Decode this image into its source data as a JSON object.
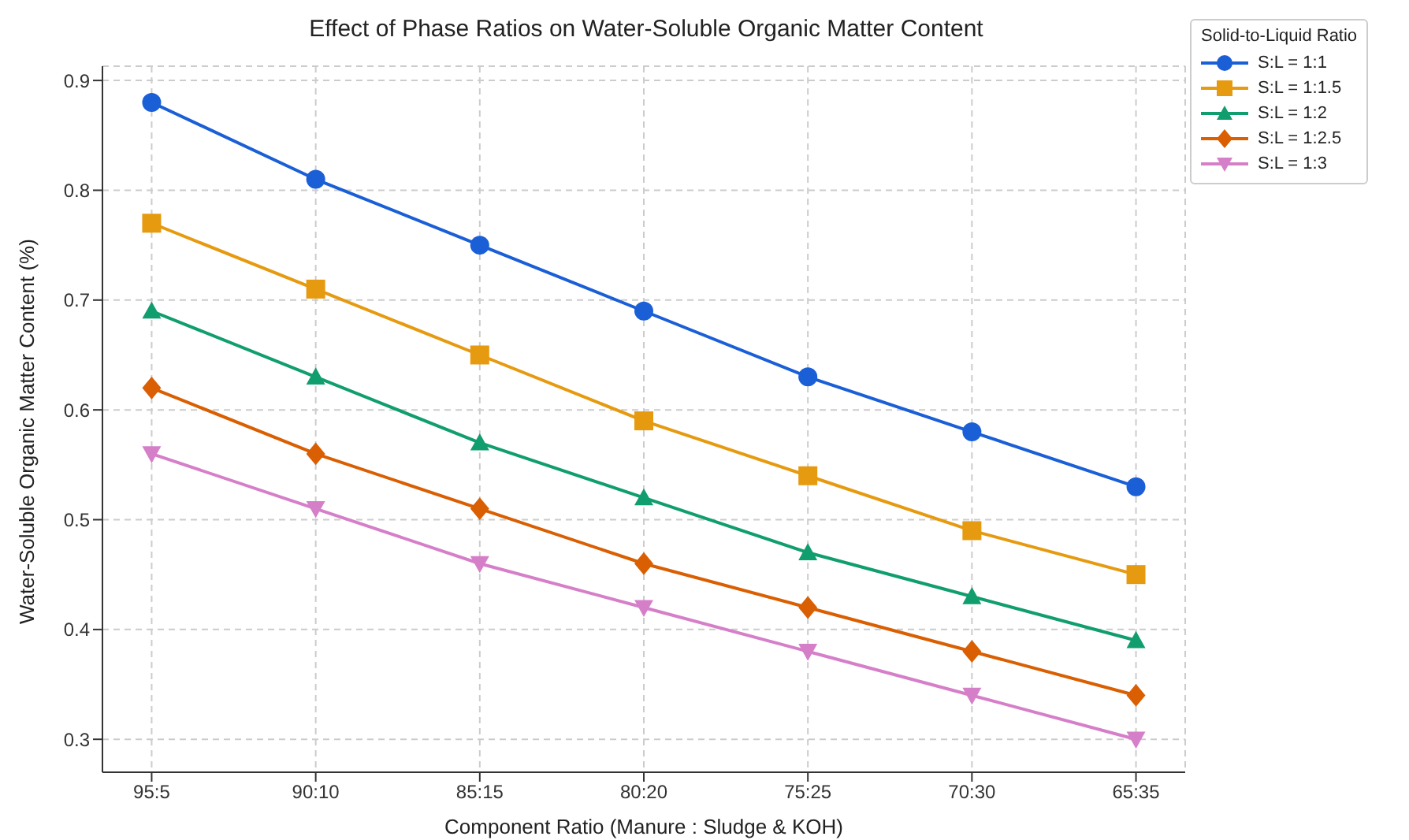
{
  "chart_data": {
    "type": "line",
    "title": "Effect of Phase Ratios on Water-Soluble Organic Matter Content",
    "xlabel": "Component Ratio (Manure : Sludge & KOH)",
    "ylabel": "Water-Soluble Organic Matter Content (%)",
    "legend_title": "Solid-to-Liquid Ratio",
    "categories": [
      "95:5",
      "90:10",
      "85:15",
      "80:20",
      "75:25",
      "70:30",
      "65:35"
    ],
    "series": [
      {
        "name": "S:L = 1:1",
        "color": "#1a5fd6",
        "marker": "circle",
        "values": [
          0.88,
          0.81,
          0.75,
          0.69,
          0.63,
          0.58,
          0.53
        ]
      },
      {
        "name": "S:L = 1:1.5",
        "color": "#e69a10",
        "marker": "square",
        "values": [
          0.77,
          0.71,
          0.65,
          0.59,
          0.54,
          0.49,
          0.45
        ]
      },
      {
        "name": "S:L = 1:2",
        "color": "#119e6e",
        "marker": "triangle",
        "values": [
          0.69,
          0.63,
          0.57,
          0.52,
          0.47,
          0.43,
          0.39
        ]
      },
      {
        "name": "S:L = 1:2.5",
        "color": "#d95f02",
        "marker": "diamond",
        "values": [
          0.62,
          0.56,
          0.51,
          0.46,
          0.42,
          0.38,
          0.34
        ]
      },
      {
        "name": "S:L = 1:3",
        "color": "#d67fc9",
        "marker": "triangle-down",
        "values": [
          0.56,
          0.51,
          0.46,
          0.42,
          0.38,
          0.34,
          0.3
        ]
      }
    ],
    "ylim": [
      0.27,
      0.913
    ],
    "yticks": [
      0.3,
      0.4,
      0.5,
      0.6,
      0.7,
      0.8,
      0.9
    ],
    "grid": true,
    "legend": "top right",
    "line_style": "solid"
  }
}
